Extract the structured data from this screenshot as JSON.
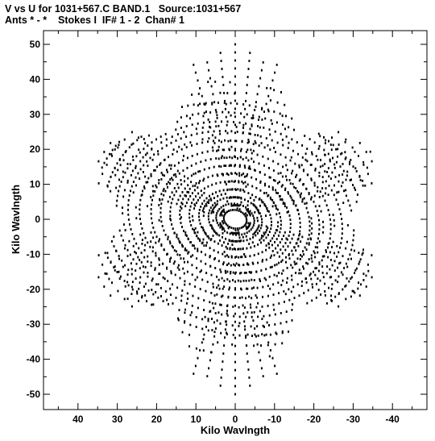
{
  "header": {
    "line1": "V vs U for 1031+567.C BAND.1   Source:1031+567",
    "line2": "Ants * - *    Stokes I  IF# 1 - 2  Chan# 1"
  },
  "chart_data": {
    "type": "scatter",
    "title": "V vs U for 1031+567.C BAND.1   Source:1031+567",
    "subtitle": "Ants * - *    Stokes I  IF# 1 - 2  Chan# 1",
    "xlabel": "Kilo Wavlngth",
    "ylabel": "Kilo Wavlngth",
    "xlim": [
      48,
      -48
    ],
    "ylim": [
      -54,
      54
    ],
    "x_reversed": true,
    "xticks": [
      40,
      30,
      20,
      10,
      0,
      -10,
      -20,
      -30,
      -40
    ],
    "yticks": [
      50,
      40,
      30,
      20,
      10,
      0,
      -10,
      -20,
      -30,
      -40,
      -50
    ],
    "grid": false,
    "marker_color": "#000000",
    "description_of_points": "uv-coverage tracks: concentric elliptical arcs about the origin forming a six-armed star, plus their point-symmetric conjugates",
    "tracks": [
      {
        "a": 3,
        "b": 2.6,
        "start": 0,
        "end": 360
      },
      {
        "a": 5,
        "b": 4.3,
        "start": 0,
        "end": 360
      },
      {
        "a": 7,
        "b": 6.1,
        "start": 0,
        "end": 360
      },
      {
        "a": 9.5,
        "b": 8.2,
        "start": 0,
        "end": 360
      },
      {
        "a": 12,
        "b": 10.4,
        "start": 0,
        "end": 360
      },
      {
        "a": 14.5,
        "b": 12.6,
        "start": 0,
        "end": 360
      },
      {
        "a": 17,
        "b": 14.8,
        "start": 0,
        "end": 360
      },
      {
        "a": 19.5,
        "b": 17,
        "start": 0,
        "end": 360
      },
      {
        "a": 22,
        "b": 19.2,
        "start": 0,
        "end": 360
      },
      {
        "a": 25,
        "b": 21.8,
        "start": 0,
        "end": 360
      },
      {
        "a": 28,
        "b": 24.4,
        "start": 0,
        "end": 360
      },
      {
        "a": 31,
        "b": 27,
        "start": 0,
        "end": 360
      },
      {
        "a": 34,
        "b": 29.6,
        "start": 0,
        "end": 360
      },
      {
        "a": 37,
        "b": 32.2,
        "start": 0,
        "end": 360
      }
    ],
    "arms": [
      {
        "angle_deg": 90,
        "reach": 50
      },
      {
        "angle_deg": 150,
        "reach": 40
      },
      {
        "angle_deg": 210,
        "reach": 40
      },
      {
        "angle_deg": 270,
        "reach": 50
      },
      {
        "angle_deg": 330,
        "reach": 40
      },
      {
        "angle_deg": 30,
        "reach": 40
      }
    ]
  }
}
